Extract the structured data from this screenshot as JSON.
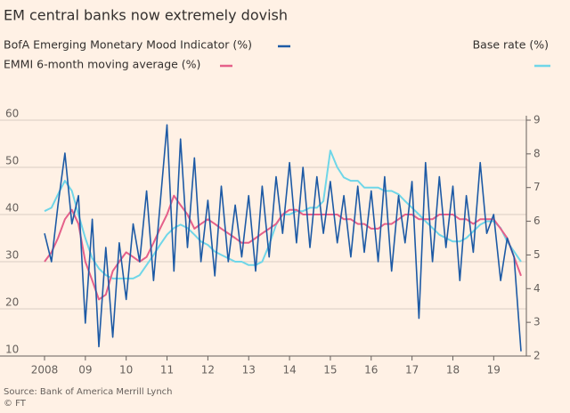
{
  "chart_data": {
    "type": "line",
    "title": "EM central banks now extremely dovish",
    "y2_label": "Base rate (%)",
    "source": "Source: Bank of America Merrill Lynch",
    "credit": "© FT",
    "x": [
      2008,
      2008.17,
      2008.33,
      2008.5,
      2008.67,
      2008.83,
      2009,
      2009.17,
      2009.33,
      2009.5,
      2009.67,
      2009.83,
      2010,
      2010.17,
      2010.33,
      2010.5,
      2010.67,
      2010.83,
      2011,
      2011.17,
      2011.33,
      2011.5,
      2011.67,
      2011.83,
      2012,
      2012.17,
      2012.33,
      2012.5,
      2012.67,
      2012.83,
      2013,
      2013.17,
      2013.33,
      2013.5,
      2013.67,
      2013.83,
      2014,
      2014.17,
      2014.33,
      2014.5,
      2014.67,
      2014.83,
      2015,
      2015.17,
      2015.33,
      2015.5,
      2015.67,
      2015.83,
      2016,
      2016.17,
      2016.33,
      2016.5,
      2016.67,
      2016.83,
      2017,
      2017.17,
      2017.33,
      2017.5,
      2017.67,
      2017.83,
      2018,
      2018.17,
      2018.33,
      2018.5,
      2018.67,
      2018.83,
      2019,
      2019.17,
      2019.33,
      2019.5,
      2019.67
    ],
    "series": [
      {
        "name": "BofA Emerging Monetary Mood Indicator (%)",
        "color": "#1d5aa5",
        "values": [
          36,
          30,
          42,
          53,
          38,
          44,
          17,
          39,
          12,
          33,
          14,
          34,
          22,
          38,
          30,
          45,
          26,
          42,
          59,
          28,
          56,
          33,
          52,
          30,
          43,
          27,
          46,
          30,
          42,
          31,
          44,
          28,
          46,
          31,
          48,
          36,
          51,
          34,
          50,
          33,
          48,
          36,
          47,
          34,
          44,
          31,
          46,
          32,
          45,
          30,
          48,
          28,
          44,
          34,
          47,
          18,
          51,
          30,
          48,
          33,
          46,
          26,
          44,
          32,
          51,
          36,
          40,
          26,
          35,
          31,
          11
        ]
      },
      {
        "name": "EMMI 6-month moving average (%)",
        "color": "#e5608a",
        "values": [
          30,
          32,
          35,
          39,
          41,
          38,
          30,
          26,
          22,
          23,
          28,
          30,
          32,
          31,
          30,
          31,
          34,
          37,
          40,
          44,
          42,
          40,
          37,
          38,
          39,
          38,
          37,
          36,
          35,
          34,
          34,
          35,
          36,
          37,
          38,
          40,
          41,
          41,
          40,
          40,
          40,
          40,
          40,
          40,
          39,
          39,
          38,
          38,
          37,
          37,
          38,
          38,
          39,
          40,
          40,
          39,
          39,
          39,
          40,
          40,
          40,
          39,
          39,
          38,
          39,
          39,
          39,
          37,
          35,
          31,
          27
        ]
      },
      {
        "name": "Base rate (%)",
        "color": "#6fd6e8",
        "axis": "y2",
        "values": [
          6.3,
          6.4,
          6.8,
          7.2,
          6.9,
          6.2,
          5.5,
          4.9,
          4.6,
          4.4,
          4.3,
          4.3,
          4.3,
          4.3,
          4.4,
          4.7,
          5.0,
          5.3,
          5.6,
          5.8,
          5.9,
          5.8,
          5.6,
          5.4,
          5.3,
          5.1,
          5.0,
          4.9,
          4.8,
          4.8,
          4.7,
          4.7,
          4.8,
          5.3,
          5.9,
          6.2,
          6.2,
          6.3,
          6.3,
          6.4,
          6.4,
          6.6,
          8.1,
          7.6,
          7.3,
          7.2,
          7.2,
          7.0,
          7.0,
          7.0,
          6.9,
          6.9,
          6.8,
          6.6,
          6.4,
          6.2,
          6.0,
          5.8,
          5.6,
          5.5,
          5.4,
          5.4,
          5.5,
          5.7,
          5.9,
          6.0,
          6.0,
          5.8,
          5.4,
          5.1,
          4.8
        ]
      }
    ],
    "xlim": [
      2008,
      2019.8
    ],
    "xticks": [
      2008,
      {
        "value": 2009,
        "label": "09"
      },
      {
        "value": 2010,
        "label": "10"
      },
      {
        "value": 2011,
        "label": "11"
      },
      {
        "value": 2012,
        "label": "12"
      },
      {
        "value": 2013,
        "label": "13"
      },
      {
        "value": 2014,
        "label": "14"
      },
      {
        "value": 2015,
        "label": "15"
      },
      {
        "value": 2016,
        "label": "16"
      },
      {
        "value": 2017,
        "label": "17"
      },
      {
        "value": 2018,
        "label": "18"
      },
      {
        "value": 2019,
        "label": "19"
      }
    ],
    "ylim": [
      10,
      60
    ],
    "yticks": [
      10,
      20,
      30,
      40,
      50,
      60
    ],
    "y2lim": [
      2,
      9
    ],
    "y2ticks": [
      2,
      3,
      4,
      5,
      6,
      7,
      8,
      9
    ],
    "grid": true
  }
}
